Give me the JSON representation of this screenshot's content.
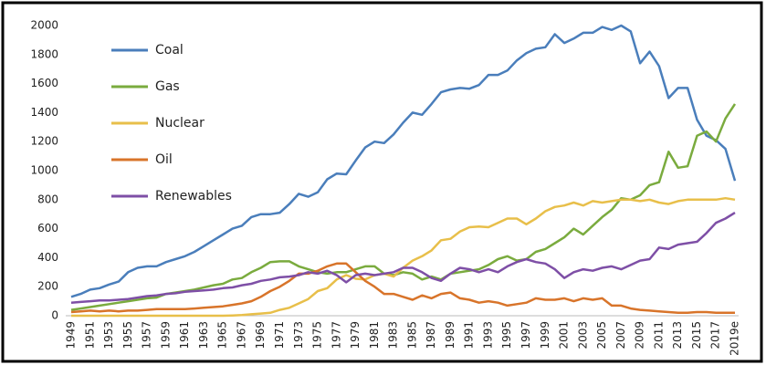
{
  "chart_data": {
    "type": "line",
    "categories": [
      "1949",
      null,
      "1951",
      null,
      "1953",
      null,
      "1955",
      null,
      "1957",
      null,
      "1959",
      null,
      "1961",
      null,
      "1963",
      null,
      "1965",
      null,
      "1967",
      null,
      "1969",
      null,
      "1971",
      null,
      "1973",
      null,
      "1975",
      null,
      "1977",
      null,
      "1979",
      null,
      "1981",
      null,
      "1983",
      null,
      "1985",
      null,
      "1987",
      null,
      "1989",
      null,
      "1991",
      null,
      "1993",
      null,
      "1995",
      null,
      "1997",
      null,
      "1999",
      null,
      "2001",
      null,
      "2003",
      null,
      "2005",
      null,
      "2007",
      null,
      "2009",
      null,
      "2011",
      null,
      "2013",
      null,
      "2015",
      null,
      "2017",
      null,
      "2019e"
    ],
    "series": [
      {
        "name": "Coal",
        "color": "#4a7ebb",
        "values": [
          130,
          150,
          180,
          190,
          215,
          235,
          300,
          330,
          340,
          340,
          370,
          390,
          410,
          440,
          480,
          520,
          560,
          600,
          620,
          680,
          700,
          700,
          710,
          770,
          840,
          820,
          850,
          940,
          980,
          975,
          1070,
          1160,
          1200,
          1190,
          1250,
          1330,
          1400,
          1385,
          1460,
          1540,
          1560,
          1570,
          1565,
          1590,
          1660,
          1660,
          1690,
          1760,
          1810,
          1840,
          1850,
          1940,
          1880,
          1910,
          1950,
          1950,
          1990,
          1970,
          2000,
          1960,
          1740,
          1820,
          1720,
          1500,
          1570,
          1570,
          1350,
          1240,
          1210,
          1150,
          930
        ]
      },
      {
        "name": "Gas",
        "color": "#7aab3e",
        "values": [
          40,
          50,
          60,
          70,
          80,
          90,
          100,
          110,
          120,
          125,
          150,
          160,
          170,
          180,
          195,
          210,
          220,
          250,
          260,
          300,
          330,
          370,
          375,
          375,
          340,
          320,
          300,
          290,
          300,
          300,
          320,
          340,
          340,
          290,
          280,
          300,
          290,
          250,
          270,
          250,
          290,
          300,
          310,
          320,
          350,
          390,
          410,
          380,
          390,
          440,
          460,
          500,
          540,
          600,
          560,
          620,
          680,
          730,
          810,
          800,
          830,
          900,
          920,
          1130,
          1020,
          1030,
          1240,
          1270,
          1200,
          1360,
          1460
        ]
      },
      {
        "name": "Nuclear",
        "color": "#e8bf4a",
        "values": [
          0,
          0,
          0,
          0,
          0,
          0,
          0,
          0,
          0,
          0,
          0,
          0,
          0,
          0,
          0,
          0,
          0,
          2,
          5,
          10,
          15,
          20,
          40,
          55,
          85,
          115,
          170,
          190,
          250,
          280,
          255,
          250,
          280,
          290,
          270,
          330,
          380,
          410,
          450,
          520,
          530,
          580,
          610,
          615,
          610,
          640,
          670,
          670,
          630,
          670,
          720,
          750,
          760,
          780,
          760,
          790,
          780,
          790,
          800,
          800,
          790,
          800,
          780,
          770,
          790,
          800,
          800,
          800,
          800,
          810,
          800
        ]
      },
      {
        "name": "Oil",
        "color": "#d8742a",
        "values": [
          25,
          30,
          35,
          30,
          35,
          30,
          35,
          35,
          40,
          45,
          45,
          45,
          45,
          50,
          55,
          60,
          65,
          75,
          85,
          100,
          130,
          170,
          200,
          240,
          290,
          290,
          310,
          340,
          360,
          360,
          300,
          240,
          200,
          150,
          150,
          130,
          110,
          140,
          120,
          150,
          160,
          120,
          110,
          90,
          100,
          90,
          70,
          80,
          90,
          120,
          110,
          110,
          120,
          100,
          120,
          110,
          120,
          70,
          70,
          50,
          40,
          35,
          30,
          25,
          20,
          20,
          25,
          25,
          20,
          20,
          20
        ]
      },
      {
        "name": "Renewables",
        "color": "#7e4fa6",
        "values": [
          90,
          95,
          100,
          105,
          105,
          110,
          115,
          125,
          135,
          140,
          150,
          155,
          165,
          170,
          175,
          180,
          190,
          195,
          210,
          220,
          240,
          250,
          265,
          270,
          280,
          300,
          290,
          310,
          280,
          230,
          280,
          290,
          280,
          290,
          300,
          330,
          330,
          300,
          260,
          240,
          290,
          330,
          320,
          300,
          320,
          300,
          340,
          370,
          390,
          370,
          360,
          320,
          260,
          300,
          320,
          310,
          330,
          340,
          320,
          350,
          380,
          390,
          470,
          460,
          490,
          500,
          510,
          570,
          640,
          670,
          710
        ]
      }
    ],
    "ylim": [
      0,
      2000
    ],
    "yticks": [
      0,
      200,
      400,
      600,
      800,
      1000,
      1200,
      1400,
      1600,
      1800,
      2000
    ],
    "grid": false,
    "legend": "upper-left"
  }
}
